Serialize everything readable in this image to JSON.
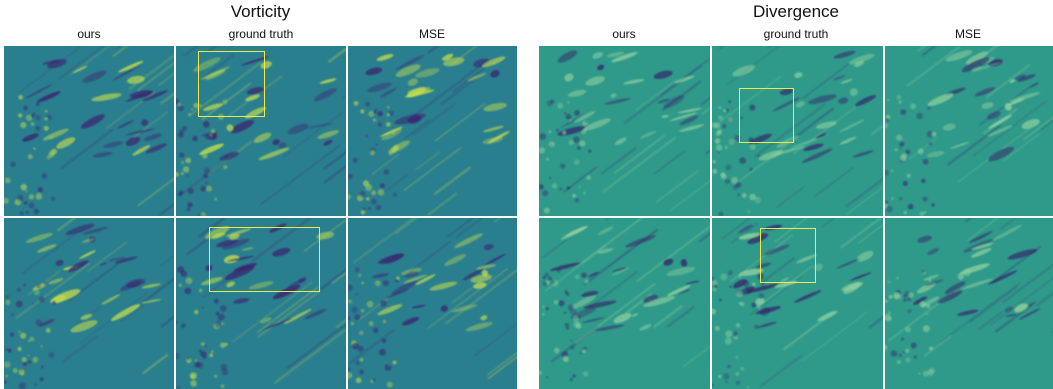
{
  "panels": [
    {
      "title": "Vorticity",
      "columns": [
        "ours",
        "ground truth",
        "MSE"
      ],
      "colors": {
        "base": "#2a7f8e",
        "positive": "#c8e04a",
        "negative": "#3a1f6e"
      }
    },
    {
      "title": "Divergence",
      "columns": [
        "ours",
        "ground truth",
        "MSE"
      ],
      "colors": {
        "base": "#2f9a8a",
        "positive": "#9ad7a0",
        "negative": "#34246a"
      }
    }
  ],
  "highlight_color": "#f2e84a"
}
